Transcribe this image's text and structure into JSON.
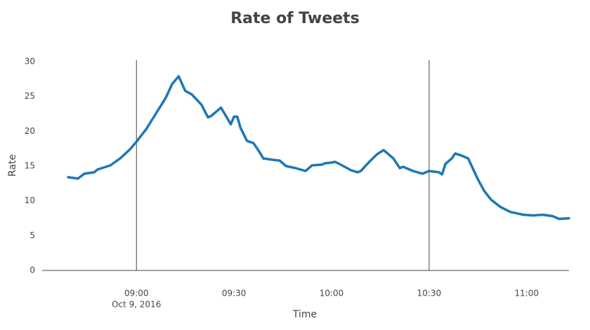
{
  "chart_data": {
    "type": "line",
    "title": "Rate of Tweets",
    "x_label": "Time",
    "y_label": "Rate",
    "x_date_label": "Oct 9, 2016",
    "x": [
      "08:39",
      "08:42",
      "08:44",
      "08:47",
      "08:48",
      "08:52",
      "08:55",
      "08:58",
      "09:00",
      "09:03",
      "09:05",
      "09:07",
      "09:09",
      "09:11",
      "09:13",
      "09:15",
      "09:17",
      "09:20",
      "09:22",
      "09:23",
      "09:26",
      "09:27",
      "09:29",
      "09:30",
      "09:31",
      "09:32",
      "09:34",
      "09:36",
      "09:38",
      "09:39",
      "09:42",
      "09:44",
      "09:46",
      "09:49",
      "09:52",
      "09:54",
      "09:57",
      "09:58",
      "10:00",
      "10:01",
      "10:02",
      "10:04",
      "10:06",
      "10:08",
      "10:09",
      "10:12",
      "10:14",
      "10:16",
      "10:19",
      "10:21",
      "10:22",
      "10:25",
      "10:28",
      "10:30",
      "10:33",
      "10:34",
      "10:35",
      "10:37",
      "10:38",
      "10:40",
      "10:42",
      "10:44",
      "10:45",
      "10:47",
      "10:49",
      "10:52",
      "10:55",
      "10:59",
      "11:02",
      "11:05",
      "11:08",
      "11:10",
      "11:13"
    ],
    "series": [
      {
        "name": "Rate",
        "color": "#1f77b4",
        "values": [
          13.4,
          13.2,
          13.9,
          14.1,
          14.5,
          15.1,
          16.1,
          17.4,
          18.5,
          20.3,
          21.8,
          23.3,
          24.8,
          26.8,
          27.9,
          25.8,
          25.3,
          23.8,
          22.0,
          22.2,
          23.4,
          22.6,
          21.0,
          22.1,
          22.1,
          20.5,
          18.6,
          18.3,
          16.9,
          16.1,
          15.9,
          15.8,
          15.0,
          14.7,
          14.3,
          15.1,
          15.2,
          15.4,
          15.5,
          15.6,
          15.4,
          14.9,
          14.4,
          14.1,
          14.3,
          15.8,
          16.7,
          17.3,
          16.1,
          14.7,
          14.9,
          14.3,
          13.9,
          14.3,
          14.1,
          13.8,
          15.3,
          16.1,
          16.8,
          16.5,
          16.1,
          14.1,
          13.1,
          11.4,
          10.2,
          9.1,
          8.4,
          8.0,
          7.9,
          8.0,
          7.8,
          7.4,
          7.5
        ]
      }
    ],
    "xlim": [
      "08:31",
      "11:13"
    ],
    "xticks": [
      "09:00",
      "09:30",
      "10:00",
      "10:30",
      "11:00"
    ],
    "ylim": [
      0,
      30
    ],
    "yticks": [
      0,
      5,
      10,
      15,
      20,
      25,
      30
    ],
    "vlines": [
      "09:00",
      "10:30"
    ],
    "grid": false
  }
}
